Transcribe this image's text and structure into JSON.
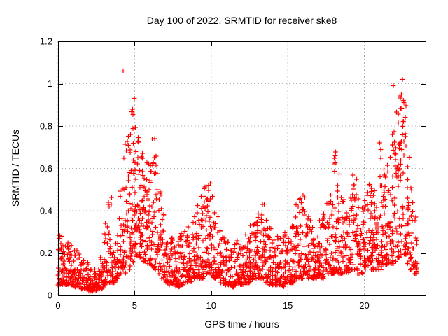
{
  "chart_data": {
    "type": "scatter",
    "title": "Day 100 of 2022, SRMTID for receiver ske8",
    "xlabel": "GPS time / hours",
    "ylabel": "SRMTID / TECUs",
    "xlim": [
      0,
      24
    ],
    "ylim": [
      0,
      1.2
    ],
    "xtick_values": [
      0,
      5,
      10,
      15,
      20
    ],
    "xtick_labels": [
      "0",
      "5",
      "10",
      "15",
      "20"
    ],
    "ytick_values": [
      0,
      0.2,
      0.4,
      0.6,
      0.8,
      1.0,
      1.2
    ],
    "ytick_labels": [
      "0",
      "0.2",
      "0.4",
      "0.6",
      "0.8",
      "1",
      "1.2"
    ],
    "grid": true,
    "legend": "none",
    "marker": {
      "glyph": "+",
      "color": "#ff0000",
      "size": 7
    },
    "colors": {
      "background": "#ffffff",
      "border": "#000000",
      "grid": "#b0b0b0",
      "text": "#000000",
      "points": "#ff0000"
    },
    "x_data_range": [
      0,
      23.5
    ],
    "bins_format": "[x_center_hours, point_count, y_min, y_max, bias_exponent]",
    "bins": [
      [
        0.125,
        26,
        0.05,
        0.3,
        2.0
      ],
      [
        0.375,
        26,
        0.05,
        0.28,
        2.0
      ],
      [
        0.625,
        24,
        0.05,
        0.26,
        2.0
      ],
      [
        0.875,
        24,
        0.05,
        0.24,
        2.0
      ],
      [
        1.125,
        24,
        0.04,
        0.22,
        2.0
      ],
      [
        1.375,
        22,
        0.04,
        0.2,
        2.0
      ],
      [
        1.625,
        22,
        0.03,
        0.18,
        2.0
      ],
      [
        1.875,
        22,
        0.03,
        0.16,
        2.0
      ],
      [
        2.125,
        22,
        0.02,
        0.14,
        2.0
      ],
      [
        2.375,
        22,
        0.02,
        0.13,
        2.0
      ],
      [
        2.625,
        22,
        0.03,
        0.14,
        2.0
      ],
      [
        2.875,
        22,
        0.03,
        0.18,
        2.0
      ],
      [
        3.125,
        24,
        0.05,
        0.38,
        2.2
      ],
      [
        3.375,
        24,
        0.06,
        0.5,
        2.2
      ],
      [
        3.625,
        22,
        0.06,
        0.32,
        2.0
      ],
      [
        3.875,
        22,
        0.08,
        0.3,
        2.0
      ],
      [
        4.125,
        24,
        0.1,
        0.5,
        1.9
      ],
      [
        4.375,
        26,
        0.1,
        0.72,
        1.7
      ],
      [
        4.625,
        28,
        0.12,
        0.82,
        1.5
      ],
      [
        4.875,
        30,
        0.15,
        0.92,
        1.5
      ],
      [
        5.125,
        32,
        0.18,
        0.82,
        1.4
      ],
      [
        5.375,
        32,
        0.18,
        0.75,
        1.4
      ],
      [
        5.625,
        30,
        0.16,
        0.72,
        1.4
      ],
      [
        5.875,
        28,
        0.15,
        0.73,
        1.5
      ],
      [
        6.125,
        26,
        0.14,
        0.74,
        1.6
      ],
      [
        6.375,
        26,
        0.12,
        0.66,
        1.7
      ],
      [
        6.625,
        24,
        0.1,
        0.5,
        1.9
      ],
      [
        6.875,
        24,
        0.08,
        0.4,
        2.0
      ],
      [
        7.125,
        24,
        0.06,
        0.32,
        2.0
      ],
      [
        7.375,
        24,
        0.05,
        0.28,
        2.0
      ],
      [
        7.625,
        22,
        0.04,
        0.26,
        2.0
      ],
      [
        7.875,
        22,
        0.04,
        0.28,
        2.0
      ],
      [
        8.125,
        24,
        0.05,
        0.3,
        2.0
      ],
      [
        8.375,
        24,
        0.06,
        0.32,
        2.0
      ],
      [
        8.625,
        24,
        0.06,
        0.36,
        2.0
      ],
      [
        8.875,
        24,
        0.08,
        0.4,
        2.0
      ],
      [
        9.125,
        24,
        0.08,
        0.46,
        2.0
      ],
      [
        9.375,
        26,
        0.08,
        0.5,
        1.9
      ],
      [
        9.625,
        26,
        0.1,
        0.52,
        1.9
      ],
      [
        9.875,
        26,
        0.1,
        0.54,
        1.9
      ],
      [
        10.125,
        26,
        0.08,
        0.48,
        2.0
      ],
      [
        10.375,
        24,
        0.08,
        0.38,
        2.0
      ],
      [
        10.625,
        24,
        0.06,
        0.32,
        2.0
      ],
      [
        10.875,
        24,
        0.05,
        0.28,
        2.0
      ],
      [
        11.125,
        24,
        0.05,
        0.28,
        2.0
      ],
      [
        11.375,
        22,
        0.04,
        0.26,
        2.0
      ],
      [
        11.625,
        22,
        0.05,
        0.28,
        2.0
      ],
      [
        11.875,
        22,
        0.05,
        0.26,
        2.0
      ],
      [
        12.125,
        24,
        0.05,
        0.28,
        2.0
      ],
      [
        12.375,
        24,
        0.06,
        0.32,
        2.0
      ],
      [
        12.625,
        24,
        0.06,
        0.36,
        2.0
      ],
      [
        12.875,
        26,
        0.08,
        0.4,
        2.0
      ],
      [
        13.125,
        26,
        0.08,
        0.42,
        2.0
      ],
      [
        13.375,
        26,
        0.08,
        0.44,
        2.0
      ],
      [
        13.625,
        24,
        0.06,
        0.36,
        2.0
      ],
      [
        13.875,
        24,
        0.05,
        0.32,
        2.0
      ],
      [
        14.125,
        24,
        0.05,
        0.3,
        2.0
      ],
      [
        14.375,
        22,
        0.05,
        0.28,
        2.0
      ],
      [
        14.625,
        22,
        0.04,
        0.28,
        2.0
      ],
      [
        14.875,
        24,
        0.05,
        0.3,
        2.0
      ],
      [
        15.125,
        24,
        0.06,
        0.32,
        2.0
      ],
      [
        15.375,
        24,
        0.06,
        0.36,
        2.0
      ],
      [
        15.625,
        26,
        0.08,
        0.44,
        1.9
      ],
      [
        15.875,
        26,
        0.08,
        0.5,
        1.8
      ],
      [
        16.125,
        26,
        0.1,
        0.48,
        1.9
      ],
      [
        16.375,
        24,
        0.08,
        0.42,
        1.9
      ],
      [
        16.625,
        24,
        0.08,
        0.38,
        2.0
      ],
      [
        16.875,
        24,
        0.08,
        0.36,
        2.0
      ],
      [
        17.125,
        24,
        0.08,
        0.38,
        2.0
      ],
      [
        17.375,
        24,
        0.08,
        0.4,
        2.0
      ],
      [
        17.625,
        24,
        0.1,
        0.44,
        2.0
      ],
      [
        17.875,
        26,
        0.1,
        0.52,
        1.9
      ],
      [
        18.125,
        26,
        0.1,
        0.68,
        1.8
      ],
      [
        18.375,
        26,
        0.1,
        0.6,
        1.8
      ],
      [
        18.625,
        24,
        0.1,
        0.46,
        1.9
      ],
      [
        18.875,
        24,
        0.1,
        0.44,
        1.9
      ],
      [
        19.125,
        26,
        0.12,
        0.58,
        1.8
      ],
      [
        19.375,
        26,
        0.12,
        0.55,
        1.8
      ],
      [
        19.625,
        24,
        0.1,
        0.46,
        1.9
      ],
      [
        19.875,
        24,
        0.1,
        0.42,
        1.9
      ],
      [
        20.125,
        24,
        0.12,
        0.5,
        1.9
      ],
      [
        20.375,
        26,
        0.12,
        0.58,
        1.8
      ],
      [
        20.625,
        26,
        0.12,
        0.55,
        1.8
      ],
      [
        20.875,
        24,
        0.12,
        0.46,
        1.9
      ],
      [
        21.125,
        26,
        0.12,
        0.7,
        1.7
      ],
      [
        21.375,
        26,
        0.14,
        0.62,
        1.7
      ],
      [
        21.625,
        26,
        0.15,
        0.66,
        1.6
      ],
      [
        21.875,
        28,
        0.15,
        0.78,
        1.5
      ],
      [
        22.125,
        28,
        0.16,
        0.88,
        1.4
      ],
      [
        22.375,
        30,
        0.18,
        1.0,
        1.4
      ],
      [
        22.625,
        28,
        0.18,
        0.92,
        1.4
      ],
      [
        22.875,
        24,
        0.15,
        0.72,
        1.6
      ],
      [
        23.125,
        22,
        0.12,
        0.52,
        1.8
      ],
      [
        23.375,
        18,
        0.1,
        0.38,
        2.0
      ]
    ],
    "outliers": [
      [
        4.25,
        1.06
      ],
      [
        4.98,
        0.93
      ],
      [
        4.86,
        0.88
      ],
      [
        6.3,
        0.74
      ],
      [
        9.95,
        0.53
      ],
      [
        18.1,
        0.66
      ],
      [
        21.0,
        0.72
      ],
      [
        21.9,
        0.99
      ],
      [
        22.5,
        1.02
      ],
      [
        22.42,
        0.95
      ],
      [
        22.55,
        0.92
      ]
    ]
  }
}
